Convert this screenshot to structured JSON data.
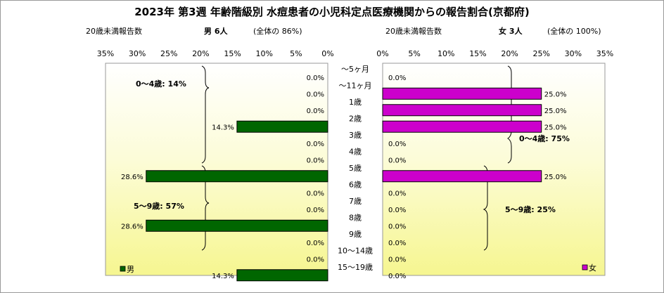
{
  "title": "2023年 第3週 年齢階級別 水痘患者の小児科定点医療機関からの報告割合(京都府)",
  "male_header": {
    "left": "20歳未満報告数",
    "count": "男 6人",
    "share": "(全体の 86%)"
  },
  "female_header": {
    "left": "20歳未満報告数",
    "count": "女 3人",
    "share": "(全体の 100%)"
  },
  "male_group_labels": [
    "0〜4歳: 14%",
    "5〜9歳: 57%"
  ],
  "female_group_labels": [
    "0〜4歳: 75%",
    "5〜9歳: 25%"
  ],
  "colors": {
    "male": "#006600",
    "female": "#cc00cc"
  },
  "chart_data": {
    "type": "bar",
    "categories": [
      "〜5ヶ月",
      "〜11ヶ月",
      "1歳",
      "2歳",
      "3歳",
      "4歳",
      "5歳",
      "6歳",
      "7歳",
      "8歳",
      "9歳",
      "10〜14歳",
      "15〜19歳"
    ],
    "x_ticks_male": [
      "35%",
      "30%",
      "25%",
      "20%",
      "15%",
      "10%",
      "5%",
      "0%"
    ],
    "x_ticks_female": [
      "0%",
      "5%",
      "10%",
      "15%",
      "20%",
      "25%",
      "30%",
      "35%"
    ],
    "xlim": [
      0,
      35
    ],
    "series": [
      {
        "name": "男",
        "values": [
          0.0,
          0.0,
          0.0,
          14.3,
          0.0,
          0.0,
          28.6,
          0.0,
          0.0,
          28.6,
          0.0,
          0.0,
          14.3
        ],
        "labels": [
          "0.0%",
          "0.0%",
          "0.0%",
          "14.3%",
          "0.0%",
          "0.0%",
          "28.6%",
          "0.0%",
          "0.0%",
          "28.6%",
          "0.0%",
          "0.0%",
          "14.3%"
        ]
      },
      {
        "name": "女",
        "values": [
          0.0,
          25.0,
          25.0,
          25.0,
          0.0,
          0.0,
          25.0,
          0.0,
          0.0,
          0.0,
          0.0,
          0.0,
          0.0
        ],
        "labels": [
          "0.0%",
          "25.0%",
          "25.0%",
          "25.0%",
          "0.0%",
          "0.0%",
          "25.0%",
          "0.0%",
          "0.0%",
          "0.0%",
          "0.0%",
          "0.0%",
          "0.0%"
        ]
      }
    ],
    "legend": [
      "男",
      "女"
    ]
  }
}
